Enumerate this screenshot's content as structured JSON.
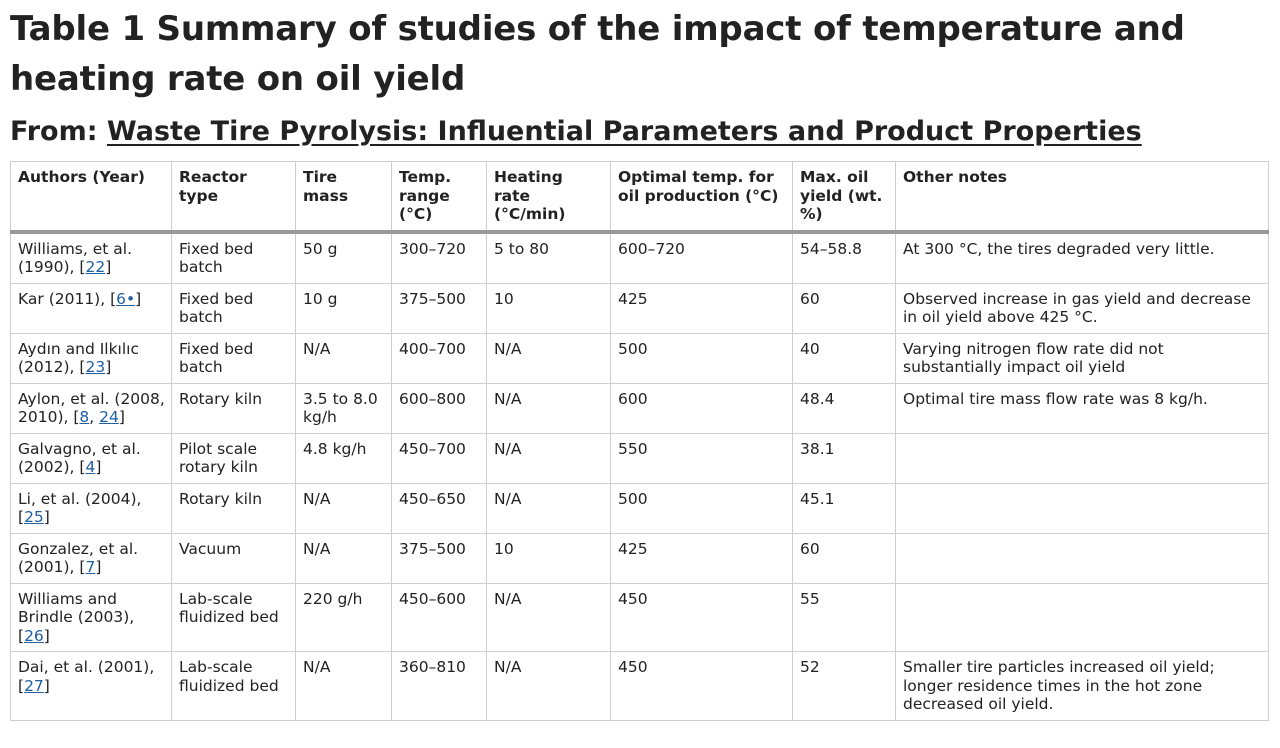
{
  "title": "Table 1 Summary of studies of the impact of temperature and heating rate on oil yield",
  "from_label": "From:",
  "from_link": "Waste Tire Pyrolysis: Influential Parameters and Product Properties",
  "columns": [
    "Authors (Year)",
    "Reactor type",
    "Tire mass",
    "Temp. range (°C)",
    "Heating rate (°C/min)",
    "Optimal temp. for oil production (°C)",
    "Max. oil yield (wt. %)",
    "Other notes"
  ],
  "rows": [
    {
      "author": "Williams, et al. (1990), [",
      "refs": [
        "22"
      ],
      "reactor": "Fixed bed batch",
      "mass": "50 g",
      "temp": "300–720",
      "rate": "5 to 80",
      "optimal": "600–720",
      "yield": "54–58.8",
      "notes": "At 300 °C, the tires degraded very little."
    },
    {
      "author": "Kar (2011), [",
      "refs": [
        "6•"
      ],
      "reactor": "Fixed bed batch",
      "mass": "10 g",
      "temp": "375–500",
      "rate": "10",
      "optimal": "425",
      "yield": "60",
      "notes": "Observed increase in gas yield and decrease in oil yield above 425 °C."
    },
    {
      "author": "Aydın and Ilkılıc (2012), [",
      "refs": [
        "23"
      ],
      "reactor": "Fixed bed batch",
      "mass": "N/A",
      "temp": "400–700",
      "rate": "N/A",
      "optimal": "500",
      "yield": "40",
      "notes": "Varying nitrogen flow rate did not substantially impact oil yield"
    },
    {
      "author": "Aylon, et al. (2008, 2010), [",
      "refs": [
        "8",
        "24"
      ],
      "reactor": "Rotary kiln",
      "mass": "3.5 to 8.0 kg/h",
      "temp": "600–800",
      "rate": "N/A",
      "optimal": "600",
      "yield": "48.4",
      "notes": "Optimal tire mass flow rate was 8 kg/h."
    },
    {
      "author": "Galvagno, et al. (2002), [",
      "refs": [
        "4"
      ],
      "reactor": "Pilot scale rotary kiln",
      "mass": "4.8 kg/h",
      "temp": "450–700",
      "rate": "N/A",
      "optimal": "550",
      "yield": "38.1",
      "notes": ""
    },
    {
      "author": "Li, et al. (2004), [",
      "refs": [
        "25"
      ],
      "reactor": "Rotary kiln",
      "mass": "N/A",
      "temp": "450–650",
      "rate": "N/A",
      "optimal": "500",
      "yield": "45.1",
      "notes": ""
    },
    {
      "author": "Gonzalez, et al. (2001), [",
      "refs": [
        "7"
      ],
      "reactor": "Vacuum",
      "mass": "N/A",
      "temp": "375–500",
      "rate": "10",
      "optimal": "425",
      "yield": "60",
      "notes": ""
    },
    {
      "author": "Williams and Brindle (2003), [",
      "refs": [
        "26"
      ],
      "reactor": "Lab-scale fluidized bed",
      "mass": "220 g/h",
      "temp": "450–600",
      "rate": "N/A",
      "optimal": "450",
      "yield": "55",
      "notes": ""
    },
    {
      "author": "Dai, et al. (2001), [",
      "refs": [
        "27"
      ],
      "reactor": "Lab-scale fluidized bed",
      "mass": "N/A",
      "temp": "360–810",
      "rate": "N/A",
      "optimal": "450",
      "yield": "52",
      "notes": "Smaller tire particles increased oil yield; longer residence times in the hot zone decreased oil yield."
    }
  ]
}
